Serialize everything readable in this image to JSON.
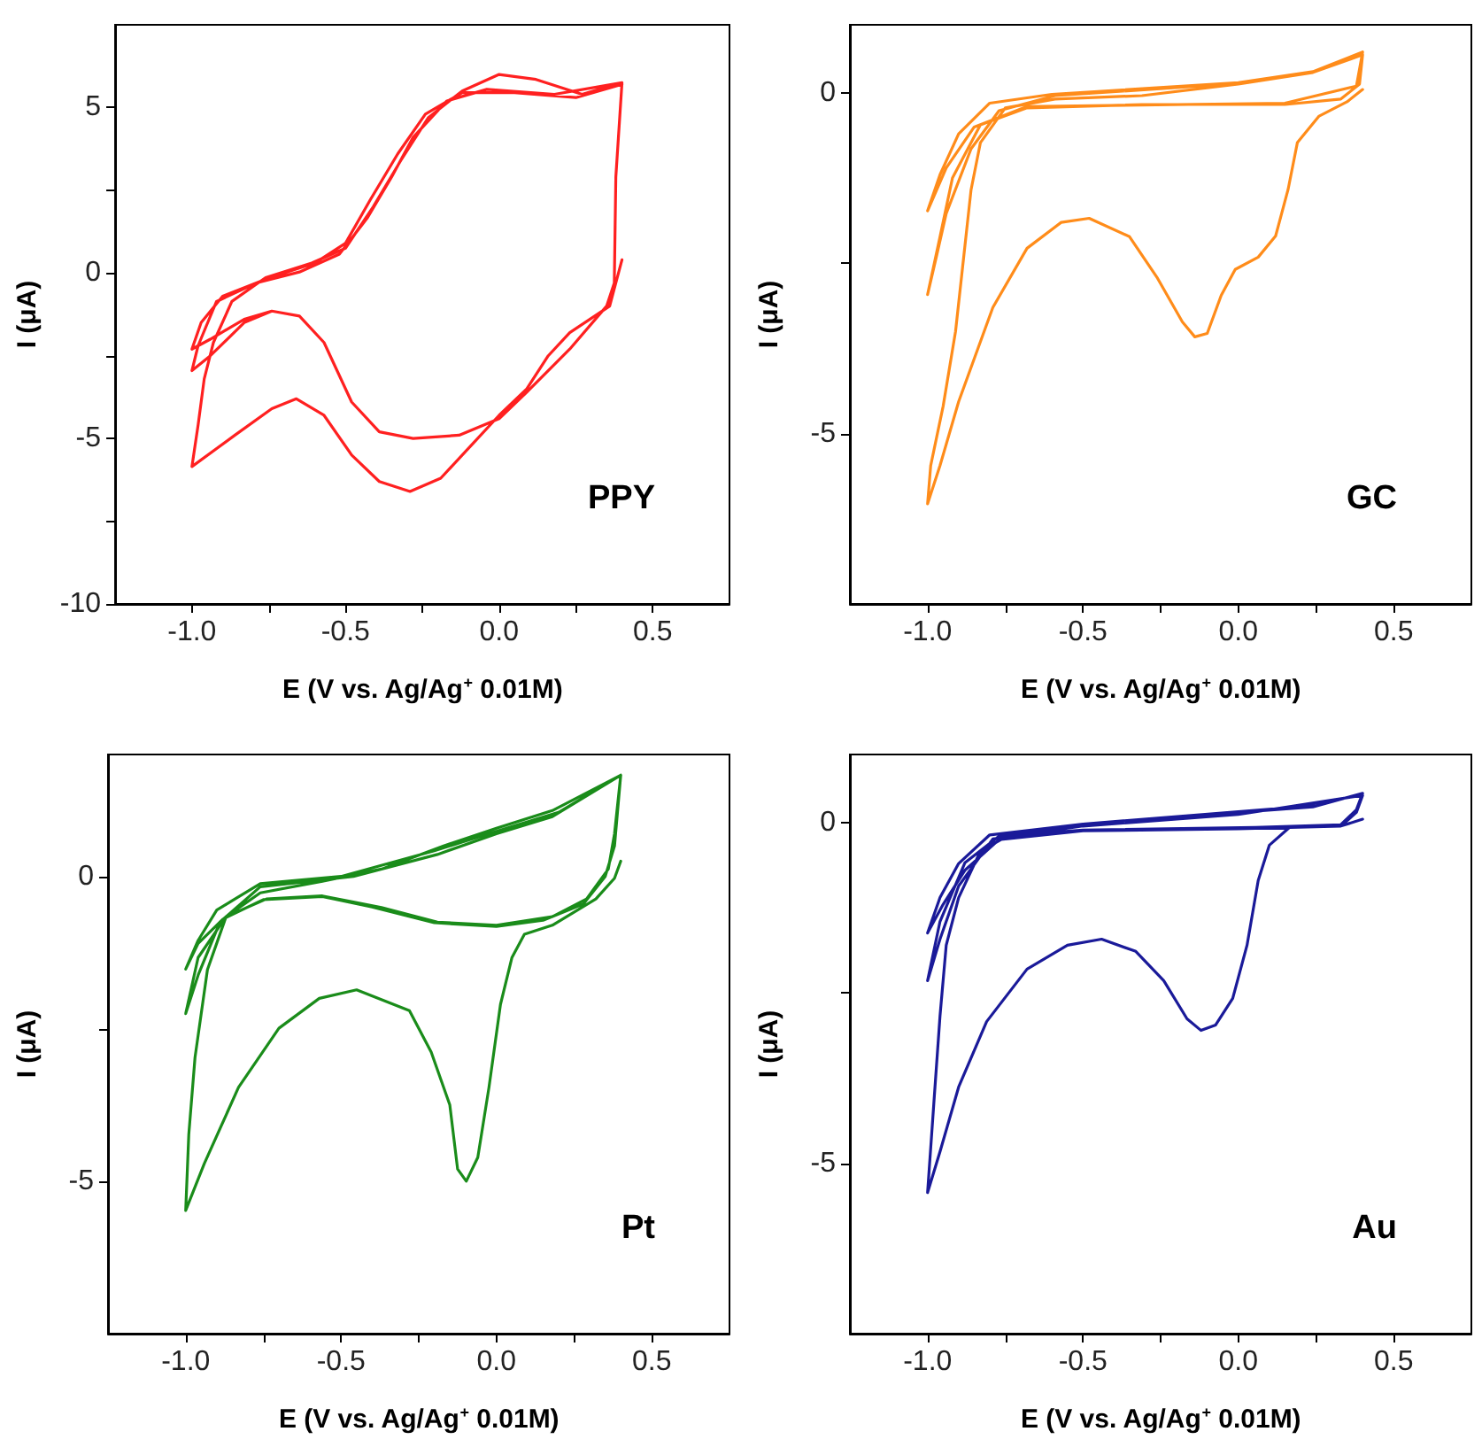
{
  "chart_data": [
    {
      "type": "line",
      "xlabel": "E (V vs. Ag/Ag$^{+}$ 0.01M)",
      "ylabel": "I (μA)",
      "annotations": [
        "PPY"
      ],
      "marker": "none",
      "line_style": "solid",
      "grid": false,
      "xlim": [
        -1.25,
        0.75
      ],
      "xticks": [
        {
          "value": -1,
          "label": "-1.0"
        },
        {
          "value": -0.75,
          "label": null
        },
        {
          "value": -0.5,
          "label": "-0.5"
        },
        {
          "value": -0.25,
          "label": null
        },
        {
          "value": 0,
          "label": "0.0"
        },
        {
          "value": 0.25,
          "label": null
        },
        {
          "value": 0.5,
          "label": "0.5"
        }
      ],
      "ylim": [
        -10,
        7.5
      ],
      "yticks": [
        -10,
        {
          "value": -7.5,
          "label": null
        },
        -5,
        {
          "value": -2.5,
          "label": null
        },
        0,
        {
          "value": 2.5,
          "label": null
        },
        5
      ],
      "series": [
        {
          "color": "#ff2020",
          "x": [
            0.4,
            0.36,
            0.23,
            0.16,
            0.09,
            0,
            -0.1,
            -0.19,
            -0.29,
            -0.39,
            -0.48,
            -0.57,
            -0.66,
            -0.74,
            -0.86,
            -1.0,
            -0.98,
            -0.96,
            -0.93,
            -0.87,
            -0.76,
            -0.61,
            -0.5,
            -0.41,
            -0.32,
            -0.23,
            -0.12,
            0,
            0.12,
            0.27,
            0.4,
            0.38,
            0.375,
            0.35,
            0.23,
            0.09,
            0,
            -0.13,
            -0.28,
            -0.39,
            -0.48,
            -0.57,
            -0.65,
            -0.74,
            -0.83,
            -0.94,
            -1.0,
            -0.98,
            -0.92,
            -0.79,
            -0.65,
            -0.52,
            -0.43,
            -0.35,
            -0.28,
            -0.17,
            -0.04,
            0.18,
            0.4,
            0.38,
            0.375,
            0.35,
            0.23,
            0.09,
            0,
            -0.13,
            -0.28,
            -0.39,
            -0.48,
            -0.57,
            -0.65,
            -0.74,
            -0.83,
            -0.94,
            -1.0,
            -0.97,
            -0.9,
            -0.75,
            -0.6,
            -0.5,
            -0.42,
            -0.33,
            -0.24,
            -0.12,
            0.05,
            0.25,
            0.4
          ],
          "values": [
            0.4,
            -1.0,
            -1.8,
            -2.5,
            -3.5,
            -4.3,
            -5.3,
            -6.2,
            -6.6,
            -6.3,
            -5.5,
            -4.3,
            -3.8,
            -4.1,
            -4.9,
            -5.85,
            -4.6,
            -3.2,
            -2.1,
            -0.86,
            -0.14,
            0.3,
            0.75,
            2.0,
            3.4,
            4.7,
            5.5,
            6.0,
            5.85,
            5.4,
            5.75,
            2.9,
            -0.3,
            -1.0,
            -2.3,
            -3.6,
            -4.4,
            -4.9,
            -5.0,
            -4.8,
            -3.9,
            -2.1,
            -1.3,
            -1.15,
            -1.5,
            -2.5,
            -2.95,
            -2.2,
            -0.86,
            -0.3,
            0.03,
            0.57,
            1.65,
            2.9,
            4.1,
            5.2,
            5.55,
            5.4,
            5.75,
            2.9,
            -0.3,
            -1.0,
            -2.3,
            -3.6,
            -4.4,
            -4.9,
            -5.0,
            -4.8,
            -3.9,
            -2.1,
            -1.3,
            -1.15,
            -1.4,
            -2.0,
            -2.3,
            -1.5,
            -0.7,
            -0.15,
            0.3,
            0.9,
            2.2,
            3.6,
            4.8,
            5.45,
            5.45,
            5.3,
            5.7
          ]
        }
      ]
    },
    {
      "type": "line",
      "xlabel": "E (V vs. Ag/Ag$^{+}$ 0.01M)",
      "ylabel": "I (μA)",
      "annotations": [
        "GC"
      ],
      "marker": "none",
      "line_style": "solid",
      "grid": false,
      "xlim": [
        -1.25,
        0.75
      ],
      "xticks": [
        {
          "value": -1,
          "label": "-1.0"
        },
        {
          "value": -0.75,
          "label": null
        },
        {
          "value": -0.5,
          "label": "-0.5"
        },
        {
          "value": -0.25,
          "label": null
        },
        {
          "value": 0,
          "label": "0.0"
        },
        {
          "value": 0.25,
          "label": null
        },
        {
          "value": 0.5,
          "label": "0.5"
        }
      ],
      "ylim": [
        -7.5,
        1
      ],
      "yticks": [
        -5,
        {
          "value": -2.5,
          "label": null
        },
        0
      ],
      "series": [
        {
          "color": "#ff8c1a",
          "x": [
            0.4,
            0.35,
            0.26,
            0.19,
            0.16,
            0.12,
            0.064,
            -0.01,
            -0.055,
            -0.1,
            -0.14,
            -0.18,
            -0.26,
            -0.35,
            -0.48,
            -0.57,
            -0.68,
            -0.79,
            -0.9,
            -0.96,
            -1.0,
            -0.99,
            -0.95,
            -0.91,
            -0.86,
            -0.83,
            -0.75,
            -0.59,
            -0.31,
            0,
            0.24,
            0.4,
            0.39,
            0.33,
            0.15,
            -0.31,
            -0.68,
            -0.83,
            -0.92,
            -0.96,
            -1.0,
            -0.97,
            -0.94,
            -0.86,
            -0.77,
            -0.59,
            0,
            0.24,
            0.4,
            0.38,
            0.15,
            -0.68,
            -0.85,
            -0.94,
            -1.0,
            -0.96,
            -0.9,
            -0.8,
            -0.6,
            0,
            0.25,
            0.4
          ],
          "values": [
            0.05,
            -0.13,
            -0.34,
            -0.73,
            -1.42,
            -2.1,
            -2.41,
            -2.59,
            -2.97,
            -3.53,
            -3.58,
            -3.36,
            -2.72,
            -2.11,
            -1.84,
            -1.9,
            -2.28,
            -3.15,
            -4.53,
            -5.47,
            -6.03,
            -5.47,
            -4.6,
            -3.5,
            -1.42,
            -0.73,
            -0.22,
            -0.09,
            -0.04,
            0.13,
            0.3,
            0.56,
            0.13,
            -0.09,
            -0.17,
            -0.17,
            -0.22,
            -0.47,
            -1.25,
            -2.11,
            -2.96,
            -2.37,
            -1.77,
            -0.82,
            -0.26,
            -0.04,
            0.14,
            0.31,
            0.6,
            0.1,
            -0.15,
            -0.2,
            -0.5,
            -1.1,
            -1.73,
            -1.2,
            -0.6,
            -0.15,
            -0.02,
            0.15,
            0.32,
            0.6
          ]
        }
      ]
    },
    {
      "type": "line",
      "xlabel": "E (V vs. Ag/Ag$^{+}$ 0.01M)",
      "ylabel": "I (μA)",
      "annotations": [
        "Pt"
      ],
      "marker": "none",
      "line_style": "solid",
      "grid": false,
      "xlim": [
        -1.25,
        0.75
      ],
      "xticks": [
        {
          "value": -1,
          "label": "-1.0"
        },
        {
          "value": -0.75,
          "label": null
        },
        {
          "value": -0.5,
          "label": "-0.5"
        },
        {
          "value": -0.25,
          "label": null
        },
        {
          "value": 0,
          "label": "0.0"
        },
        {
          "value": 0.25,
          "label": null
        },
        {
          "value": 0.5,
          "label": "0.5"
        }
      ],
      "ylim": [
        -7.5,
        2
      ],
      "yticks": [
        -5,
        {
          "value": -2.5,
          "label": null
        },
        0
      ],
      "series": [
        {
          "color": "#1a8c1a",
          "x": [
            0.4,
            0.38,
            0.32,
            0.18,
            0.09,
            0.05,
            0.013,
            -0.024,
            -0.06,
            -0.097,
            -0.125,
            -0.15,
            -0.21,
            -0.28,
            -0.45,
            -0.57,
            -0.7,
            -0.83,
            -0.94,
            -1.0,
            -0.99,
            -0.97,
            -0.93,
            -0.87,
            -0.76,
            -0.56,
            -0.37,
            -0.17,
            0,
            0.18,
            0.4,
            0.38,
            0.36,
            0.29,
            0.18,
            0,
            -0.19,
            -0.37,
            -0.56,
            -0.74,
            -0.87,
            -0.96,
            -1.0,
            -0.96,
            -0.89,
            -0.76,
            -0.46,
            -0.19,
            0,
            0.18,
            0.4,
            0.38,
            0.35,
            0.28,
            0.15,
            0,
            -0.2,
            -0.4,
            -0.56,
            -0.75,
            -0.88,
            -0.96,
            -1.0,
            -0.96,
            -0.9,
            -0.76,
            -0.5,
            -0.2,
            0,
            0.2,
            0.4
          ],
          "values": [
            0.25,
            -0.03,
            -0.37,
            -0.8,
            -0.95,
            -1.33,
            -2.1,
            -3.46,
            -4.61,
            -5.0,
            -4.8,
            -3.75,
            -2.88,
            -2.2,
            -1.86,
            -2.0,
            -2.49,
            -3.46,
            -4.71,
            -5.48,
            -4.23,
            -2.97,
            -1.53,
            -0.66,
            -0.27,
            -0.08,
            0.12,
            0.5,
            0.79,
            1.08,
            1.66,
            0.7,
            0.12,
            -0.37,
            -0.66,
            -0.8,
            -0.75,
            -0.51,
            -0.32,
            -0.37,
            -0.66,
            -1.33,
            -2.25,
            -1.62,
            -0.75,
            -0.17,
            0,
            0.36,
            0.7,
            0.98,
            1.66,
            0.5,
            0.0,
            -0.45,
            -0.72,
            -0.82,
            -0.76,
            -0.5,
            -0.33,
            -0.38,
            -0.7,
            -1.1,
            -1.52,
            -1.05,
            -0.55,
            -0.12,
            0,
            0.42,
            0.74,
            1.05,
            1.66
          ]
        }
      ]
    },
    {
      "type": "line",
      "xlabel": "E (V vs. Ag/Ag$^{+}$ 0.01M)",
      "ylabel": "I (μA)",
      "annotations": [
        "Au"
      ],
      "marker": "none",
      "line_style": "solid",
      "grid": false,
      "xlim": [
        -1.25,
        0.75
      ],
      "xticks": [
        {
          "value": -1,
          "label": "-1.0"
        },
        {
          "value": -0.75,
          "label": null
        },
        {
          "value": -0.5,
          "label": "-0.5"
        },
        {
          "value": -0.25,
          "label": null
        },
        {
          "value": 0,
          "label": "0.0"
        },
        {
          "value": 0.25,
          "label": null
        },
        {
          "value": 0.5,
          "label": "0.5"
        }
      ],
      "ylim": [
        -7.5,
        1
      ],
      "yticks": [
        -5,
        {
          "value": -2.5,
          "label": null
        },
        0
      ],
      "series": [
        {
          "color": "#1a1a99",
          "x": [
            0.4,
            0.33,
            0.165,
            0.1,
            0.064,
            0.028,
            -0.018,
            -0.073,
            -0.12,
            -0.165,
            -0.24,
            -0.33,
            -0.44,
            -0.55,
            -0.68,
            -0.81,
            -0.9,
            -0.96,
            -1.0,
            -0.98,
            -0.96,
            -0.94,
            -0.9,
            -0.83,
            -0.73,
            -0.5,
            0,
            0.24,
            0.4,
            0.38,
            0.33,
            0.055,
            -0.5,
            -0.77,
            -0.88,
            -0.96,
            -1.0,
            -0.96,
            -0.9,
            -0.79,
            -0.5,
            0,
            0.4,
            0.38,
            0.33,
            0,
            -0.5,
            -0.77,
            -0.88,
            -0.95,
            -1.0,
            -0.96,
            -0.9,
            -0.8,
            -0.5,
            0,
            0.25,
            0.4
          ],
          "values": [
            0.05,
            -0.05,
            -0.07,
            -0.33,
            -0.85,
            -1.8,
            -2.58,
            -2.97,
            -3.05,
            -2.88,
            -2.32,
            -1.89,
            -1.71,
            -1.8,
            -2.15,
            -2.92,
            -3.88,
            -4.83,
            -5.43,
            -4.13,
            -2.84,
            -1.8,
            -1.1,
            -0.42,
            -0.16,
            -0.03,
            0.15,
            0.23,
            0.43,
            0.19,
            -0.03,
            -0.07,
            -0.11,
            -0.2,
            -0.59,
            -1.45,
            -2.32,
            -1.71,
            -0.93,
            -0.24,
            -0.05,
            0.12,
            0.4,
            0.15,
            -0.05,
            -0.09,
            -0.12,
            -0.25,
            -0.7,
            -1.2,
            -1.62,
            -1.1,
            -0.6,
            -0.18,
            -0.02,
            0.16,
            0.25,
            0.43
          ]
        }
      ]
    }
  ]
}
